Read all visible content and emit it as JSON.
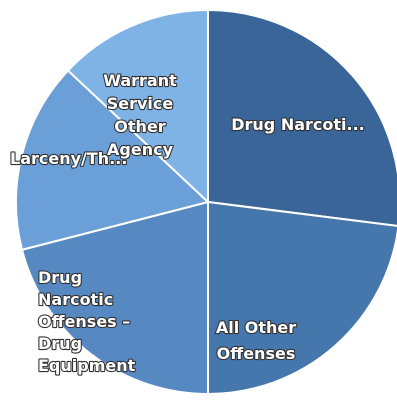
{
  "chart_data": {
    "type": "pie",
    "title": "",
    "legend": "none",
    "slices": [
      {
        "label": "Drug Narcoti...",
        "display_lines": [
          "Drug Narcoti..."
        ],
        "value": 27,
        "color": "#3a6598"
      },
      {
        "label": "All Other Offenses",
        "display_lines": [
          "All Other",
          "Offenses"
        ],
        "value": 23,
        "color": "#4577ad"
      },
      {
        "label": "Drug Narcotic Offenses - Drug Equipment",
        "display_lines": [
          "Drug",
          "Narcotic",
          "Offenses –",
          "Drug",
          "Equipment"
        ],
        "value": 21,
        "color": "#5688c2"
      },
      {
        "label": "Larceny/Th...",
        "display_lines": [
          "Larceny/Th..."
        ],
        "value": 16,
        "color": "#6a9fd7"
      },
      {
        "label": "Warrant Service Other Agency",
        "display_lines": [
          "Warrant",
          "Service",
          "Other",
          "Agency"
        ],
        "value": 13,
        "color": "#7fb3e6"
      }
    ]
  }
}
